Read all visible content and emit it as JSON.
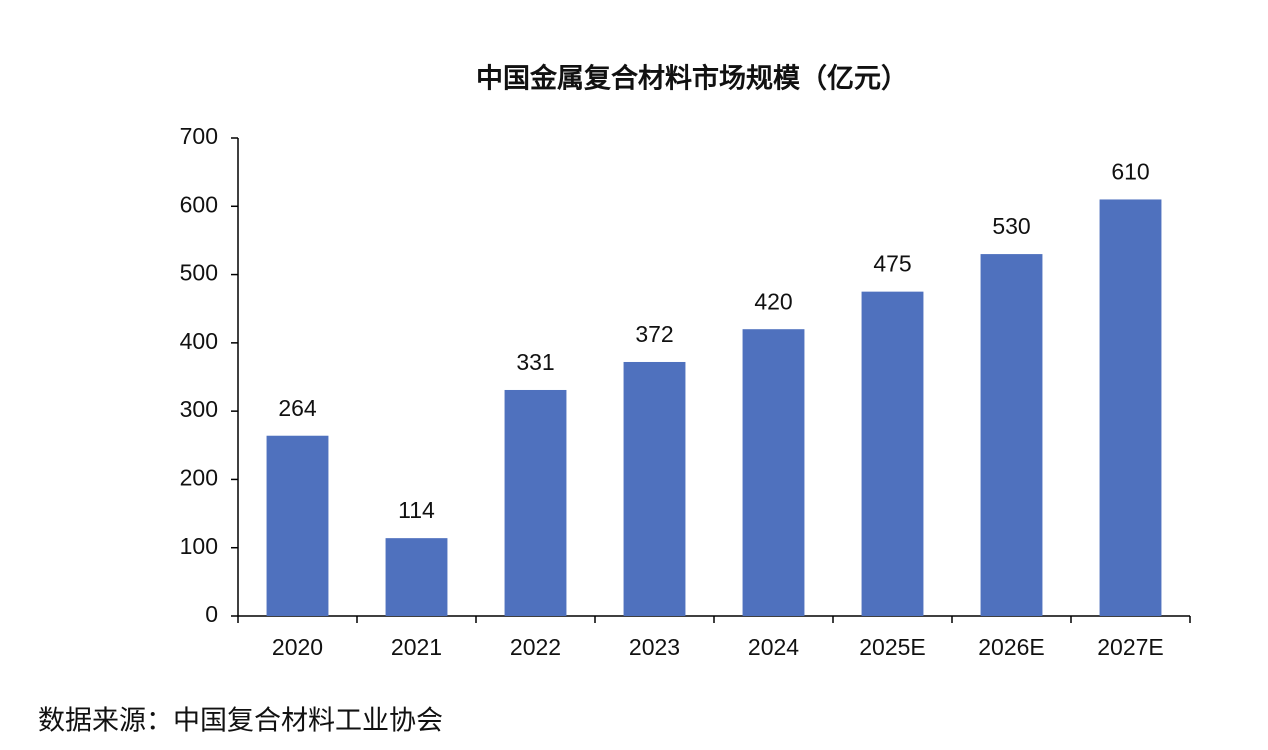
{
  "chart_data": {
    "type": "bar",
    "title": "中国金属复合材料市场规模（亿元）",
    "categories": [
      "2020",
      "2021",
      "2022",
      "2023",
      "2024",
      "2025E",
      "2026E",
      "2027E"
    ],
    "values": [
      264,
      114,
      331,
      372,
      420,
      475,
      530,
      610
    ],
    "color": "#4f71be",
    "ylim": [
      0,
      700
    ],
    "yticks": [
      0,
      100,
      200,
      300,
      400,
      500,
      600,
      700
    ],
    "grid": false,
    "source": "数据来源：中国复合材料工业协会"
  }
}
